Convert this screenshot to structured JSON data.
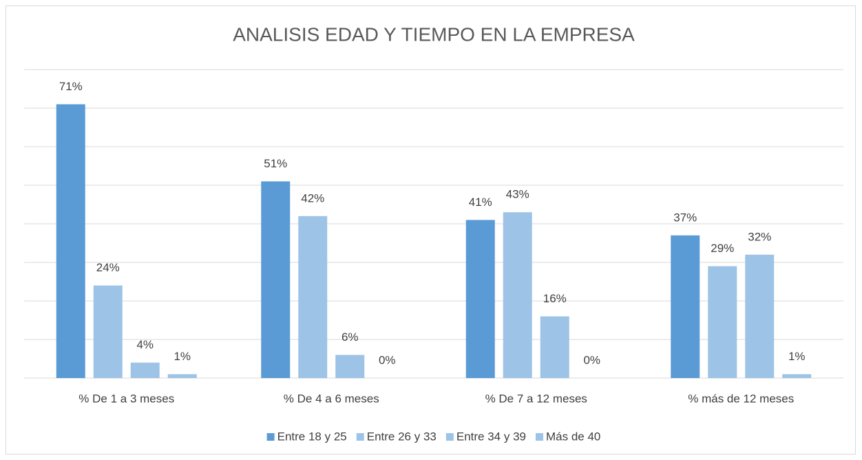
{
  "chart_data": {
    "type": "bar",
    "title": "ANALISIS EDAD Y TIEMPO EN LA EMPRESA",
    "categories": [
      "% De 1 a 3 meses",
      "% De 4 a 6 meses",
      "% De 7 a 12 meses",
      "% más de 12 meses"
    ],
    "series": [
      {
        "name": "Entre 18 y 25",
        "color": "#5b9bd5",
        "values": [
          71,
          51,
          41,
          37
        ],
        "value_labels": [
          "71%",
          "51%",
          "41%",
          "37%"
        ]
      },
      {
        "name": "Entre 26 y 33",
        "color": "#9dc3e6",
        "values": [
          24,
          42,
          43,
          29
        ],
        "value_labels": [
          "24%",
          "42%",
          "43%",
          "29%"
        ]
      },
      {
        "name": "Entre 34 y 39",
        "color": "#9dc3e6",
        "values": [
          4,
          6,
          16,
          32
        ],
        "value_labels": [
          "4%",
          "6%",
          "16%",
          "32%"
        ]
      },
      {
        "name": "Más de 40",
        "color": "#9dc3e6",
        "values": [
          1,
          0,
          0,
          1
        ],
        "value_labels": [
          "1%",
          "0%",
          "0%",
          "1%"
        ]
      }
    ],
    "ylim": [
      0,
      80
    ],
    "yticks": [
      0,
      10,
      20,
      30,
      40,
      50,
      60,
      70,
      80
    ],
    "grid": true,
    "legend": "bottom"
  }
}
